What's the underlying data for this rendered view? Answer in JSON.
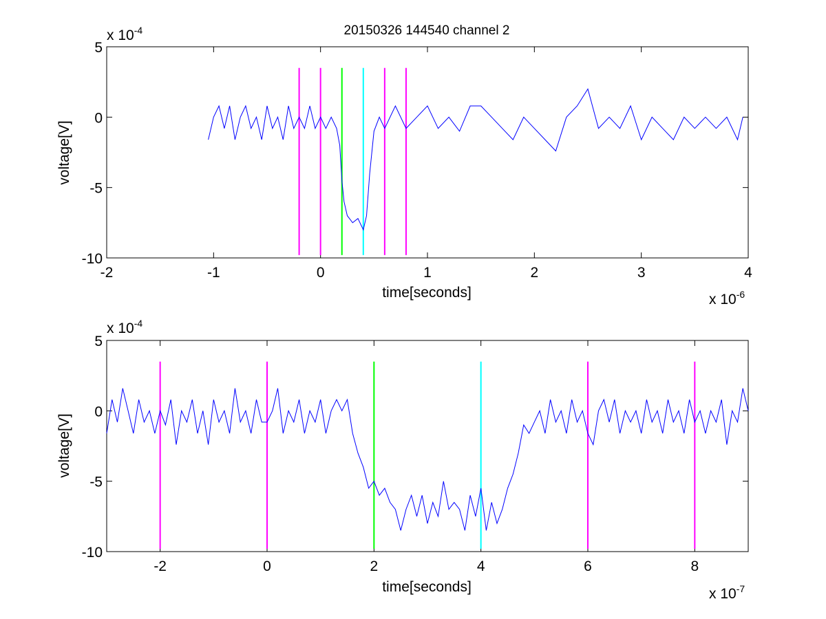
{
  "figure_title": "20150326 144540 channel 2",
  "colors": {
    "trace": "#0000ff",
    "marker_magenta": "#ff00ff",
    "marker_green": "#00ff00",
    "marker_cyan": "#00ffff",
    "axes": "#000000"
  },
  "chart_data": [
    {
      "type": "line",
      "title": "20150326 144540 channel 2",
      "xlabel": "time[seconds]",
      "ylabel": "voltage[V]",
      "x_multiplier_label": "x 10",
      "x_multiplier_exp": "-6",
      "y_multiplier_label": "x 10",
      "y_multiplier_exp": "-4",
      "xlim": [
        -2,
        4
      ],
      "ylim": [
        -10,
        5
      ],
      "x_ticks": [
        "-2",
        "-1",
        "0",
        "1",
        "2",
        "3",
        "4"
      ],
      "y_ticks": [
        "5",
        "0",
        "-5",
        "-10"
      ],
      "grid": false,
      "series": [
        {
          "x_range": [
            -1.05,
            3.95
          ],
          "values_note_units": "x in 1e-6 s, y in 1e-4 V",
          "points": [
            [
              -1.05,
              -1.6
            ],
            [
              -1.0,
              0.0
            ],
            [
              -0.95,
              0.8
            ],
            [
              -0.9,
              -0.8
            ],
            [
              -0.85,
              0.8
            ],
            [
              -0.8,
              -1.6
            ],
            [
              -0.75,
              0.0
            ],
            [
              -0.7,
              0.8
            ],
            [
              -0.65,
              -0.8
            ],
            [
              -0.6,
              0.0
            ],
            [
              -0.55,
              -1.6
            ],
            [
              -0.5,
              0.8
            ],
            [
              -0.45,
              -0.8
            ],
            [
              -0.4,
              0.0
            ],
            [
              -0.35,
              -1.6
            ],
            [
              -0.3,
              0.8
            ],
            [
              -0.25,
              -0.8
            ],
            [
              -0.2,
              0.0
            ],
            [
              -0.15,
              -0.8
            ],
            [
              -0.1,
              0.8
            ],
            [
              -0.05,
              -0.8
            ],
            [
              0.0,
              0.0
            ],
            [
              0.05,
              -0.8
            ],
            [
              0.1,
              0.0
            ],
            [
              0.15,
              -0.8
            ],
            [
              0.18,
              -2.0
            ],
            [
              0.2,
              -4.5
            ],
            [
              0.22,
              -6.0
            ],
            [
              0.25,
              -7.0
            ],
            [
              0.3,
              -7.5
            ],
            [
              0.35,
              -7.2
            ],
            [
              0.4,
              -8.0
            ],
            [
              0.43,
              -7.0
            ],
            [
              0.46,
              -4.0
            ],
            [
              0.5,
              -1.0
            ],
            [
              0.55,
              0.0
            ],
            [
              0.6,
              -0.8
            ],
            [
              0.7,
              0.8
            ],
            [
              0.8,
              -0.8
            ],
            [
              0.9,
              0.0
            ],
            [
              1.0,
              0.8
            ],
            [
              1.1,
              -0.8
            ],
            [
              1.2,
              0.0
            ],
            [
              1.3,
              -1.0
            ],
            [
              1.4,
              0.8
            ],
            [
              1.5,
              0.8
            ],
            [
              1.6,
              0.0
            ],
            [
              1.7,
              -0.8
            ],
            [
              1.8,
              -1.6
            ],
            [
              1.9,
              0.0
            ],
            [
              2.0,
              -0.8
            ],
            [
              2.1,
              -1.6
            ],
            [
              2.2,
              -2.4
            ],
            [
              2.3,
              0.0
            ],
            [
              2.4,
              0.8
            ],
            [
              2.5,
              2.0
            ],
            [
              2.6,
              -0.8
            ],
            [
              2.7,
              0.0
            ],
            [
              2.8,
              -0.8
            ],
            [
              2.9,
              0.8
            ],
            [
              3.0,
              -1.6
            ],
            [
              3.1,
              0.0
            ],
            [
              3.2,
              -0.8
            ],
            [
              3.3,
              -1.6
            ],
            [
              3.4,
              0.0
            ],
            [
              3.5,
              -0.8
            ],
            [
              3.6,
              0.0
            ],
            [
              3.7,
              -0.8
            ],
            [
              3.8,
              0.0
            ],
            [
              3.9,
              -1.6
            ],
            [
              3.95,
              0.0
            ]
          ]
        }
      ],
      "markers": [
        {
          "x": -0.2,
          "color": "magenta"
        },
        {
          "x": 0.0,
          "color": "magenta"
        },
        {
          "x": 0.2,
          "color": "green"
        },
        {
          "x": 0.4,
          "color": "cyan"
        },
        {
          "x": 0.6,
          "color": "magenta"
        },
        {
          "x": 0.8,
          "color": "magenta"
        }
      ],
      "marker_span": [
        -9.8,
        3.5
      ]
    },
    {
      "type": "line",
      "xlabel": "time[seconds]",
      "ylabel": "voltage[V]",
      "x_multiplier_label": "x 10",
      "x_multiplier_exp": "-7",
      "y_multiplier_label": "x 10",
      "y_multiplier_exp": "-4",
      "xlim": [
        -3,
        9
      ],
      "ylim": [
        -10,
        5
      ],
      "x_ticks": [
        "-2",
        "0",
        "2",
        "4",
        "6",
        "8"
      ],
      "y_ticks": [
        "5",
        "0",
        "-5",
        "-10"
      ],
      "grid": false,
      "series": [
        {
          "values_note_units": "x in 1e-7 s, y in 1e-4 V",
          "points": [
            [
              -3.0,
              -1.6
            ],
            [
              -2.9,
              0.8
            ],
            [
              -2.8,
              -0.8
            ],
            [
              -2.7,
              1.6
            ],
            [
              -2.6,
              0.0
            ],
            [
              -2.5,
              -1.6
            ],
            [
              -2.4,
              0.8
            ],
            [
              -2.3,
              -0.8
            ],
            [
              -2.2,
              0.0
            ],
            [
              -2.1,
              -1.6
            ],
            [
              -2.0,
              0.0
            ],
            [
              -1.9,
              -1.0
            ],
            [
              -1.8,
              0.8
            ],
            [
              -1.7,
              -2.4
            ],
            [
              -1.6,
              0.0
            ],
            [
              -1.5,
              -0.8
            ],
            [
              -1.4,
              0.8
            ],
            [
              -1.3,
              -1.6
            ],
            [
              -1.2,
              0.0
            ],
            [
              -1.1,
              -2.4
            ],
            [
              -1.0,
              0.8
            ],
            [
              -0.9,
              -0.8
            ],
            [
              -0.8,
              0.0
            ],
            [
              -0.7,
              -1.6
            ],
            [
              -0.6,
              1.6
            ],
            [
              -0.5,
              -0.8
            ],
            [
              -0.4,
              0.0
            ],
            [
              -0.3,
              -1.6
            ],
            [
              -0.2,
              0.8
            ],
            [
              -0.1,
              -0.8
            ],
            [
              0.0,
              -0.8
            ],
            [
              0.1,
              0.0
            ],
            [
              0.2,
              1.6
            ],
            [
              0.3,
              -1.6
            ],
            [
              0.4,
              0.0
            ],
            [
              0.5,
              -0.8
            ],
            [
              0.6,
              0.8
            ],
            [
              0.7,
              -1.6
            ],
            [
              0.8,
              0.0
            ],
            [
              0.9,
              -0.8
            ],
            [
              1.0,
              0.8
            ],
            [
              1.1,
              -1.6
            ],
            [
              1.2,
              0.0
            ],
            [
              1.3,
              0.8
            ],
            [
              1.4,
              0.0
            ],
            [
              1.5,
              0.8
            ],
            [
              1.6,
              -1.6
            ],
            [
              1.7,
              -3.0
            ],
            [
              1.8,
              -4.0
            ],
            [
              1.9,
              -5.5
            ],
            [
              2.0,
              -5.0
            ],
            [
              2.1,
              -6.0
            ],
            [
              2.2,
              -5.5
            ],
            [
              2.3,
              -6.5
            ],
            [
              2.4,
              -7.0
            ],
            [
              2.5,
              -8.5
            ],
            [
              2.6,
              -7.0
            ],
            [
              2.7,
              -6.0
            ],
            [
              2.8,
              -7.5
            ],
            [
              2.9,
              -6.0
            ],
            [
              3.0,
              -8.0
            ],
            [
              3.1,
              -6.5
            ],
            [
              3.2,
              -7.5
            ],
            [
              3.3,
              -5.0
            ],
            [
              3.4,
              -7.0
            ],
            [
              3.5,
              -6.5
            ],
            [
              3.6,
              -7.0
            ],
            [
              3.7,
              -8.5
            ],
            [
              3.8,
              -6.0
            ],
            [
              3.9,
              -7.5
            ],
            [
              4.0,
              -5.5
            ],
            [
              4.1,
              -8.5
            ],
            [
              4.2,
              -6.5
            ],
            [
              4.3,
              -8.0
            ],
            [
              4.4,
              -7.0
            ],
            [
              4.5,
              -5.5
            ],
            [
              4.6,
              -4.5
            ],
            [
              4.7,
              -3.0
            ],
            [
              4.8,
              -1.0
            ],
            [
              4.9,
              -1.6
            ],
            [
              5.0,
              -0.8
            ],
            [
              5.1,
              0.0
            ],
            [
              5.2,
              -1.6
            ],
            [
              5.3,
              0.8
            ],
            [
              5.4,
              -0.8
            ],
            [
              5.5,
              0.0
            ],
            [
              5.6,
              -1.6
            ],
            [
              5.7,
              0.8
            ],
            [
              5.8,
              -0.8
            ],
            [
              5.9,
              0.0
            ],
            [
              6.0,
              -1.6
            ],
            [
              6.1,
              -2.4
            ],
            [
              6.2,
              0.0
            ],
            [
              6.3,
              0.8
            ],
            [
              6.4,
              -0.8
            ],
            [
              6.5,
              0.8
            ],
            [
              6.6,
              -1.6
            ],
            [
              6.7,
              0.0
            ],
            [
              6.8,
              -0.8
            ],
            [
              6.9,
              0.0
            ],
            [
              7.0,
              -1.6
            ],
            [
              7.1,
              0.8
            ],
            [
              7.2,
              -0.8
            ],
            [
              7.3,
              0.0
            ],
            [
              7.4,
              -1.6
            ],
            [
              7.5,
              0.8
            ],
            [
              7.6,
              -0.8
            ],
            [
              7.7,
              0.0
            ],
            [
              7.8,
              -1.6
            ],
            [
              7.9,
              0.8
            ],
            [
              8.0,
              -0.8
            ],
            [
              8.1,
              0.0
            ],
            [
              8.2,
              -1.6
            ],
            [
              8.3,
              0.0
            ],
            [
              8.4,
              -0.8
            ],
            [
              8.5,
              0.8
            ],
            [
              8.6,
              -2.4
            ],
            [
              8.7,
              0.0
            ],
            [
              8.8,
              -0.8
            ],
            [
              8.9,
              1.6
            ],
            [
              9.0,
              0.0
            ]
          ]
        }
      ],
      "markers": [
        {
          "x": -2,
          "color": "magenta"
        },
        {
          "x": 0,
          "color": "magenta"
        },
        {
          "x": 2,
          "color": "green"
        },
        {
          "x": 4,
          "color": "cyan"
        },
        {
          "x": 6,
          "color": "magenta"
        },
        {
          "x": 8,
          "color": "magenta"
        }
      ],
      "marker_span": [
        -9.8,
        3.5
      ]
    }
  ]
}
